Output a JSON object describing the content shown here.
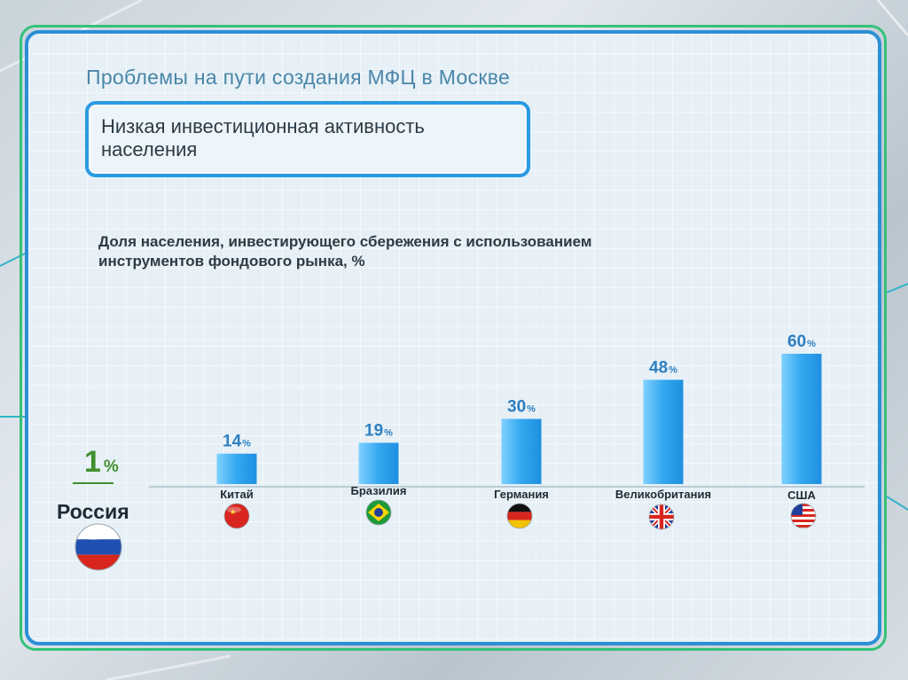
{
  "page": {
    "title": "Проблемы на пути создания МФЦ в Москве",
    "callout": "Низкая инвестиционная активность населения"
  },
  "chart_data": {
    "type": "bar",
    "title": "Доля населения, инвестирующего сбережения с использованием инструментов фондового рынка, %",
    "unit": "%",
    "baseline": {
      "name": "Россия",
      "value": 1,
      "value_label": "1",
      "color": "#3f8f2f",
      "flag": "flag-russia"
    },
    "categories": [
      "Китай",
      "Бразилия",
      "Германия",
      "Великобритания",
      "США"
    ],
    "values": [
      14,
      19,
      30,
      48,
      60
    ],
    "value_labels": [
      "14",
      "19",
      "30",
      "48",
      "60"
    ],
    "flags": [
      "flag-china",
      "flag-brazil",
      "flag-germany",
      "flag-uk",
      "flag-usa"
    ],
    "bar_color": "#33a8f0",
    "ylim": [
      0,
      60
    ],
    "grid": true
  }
}
